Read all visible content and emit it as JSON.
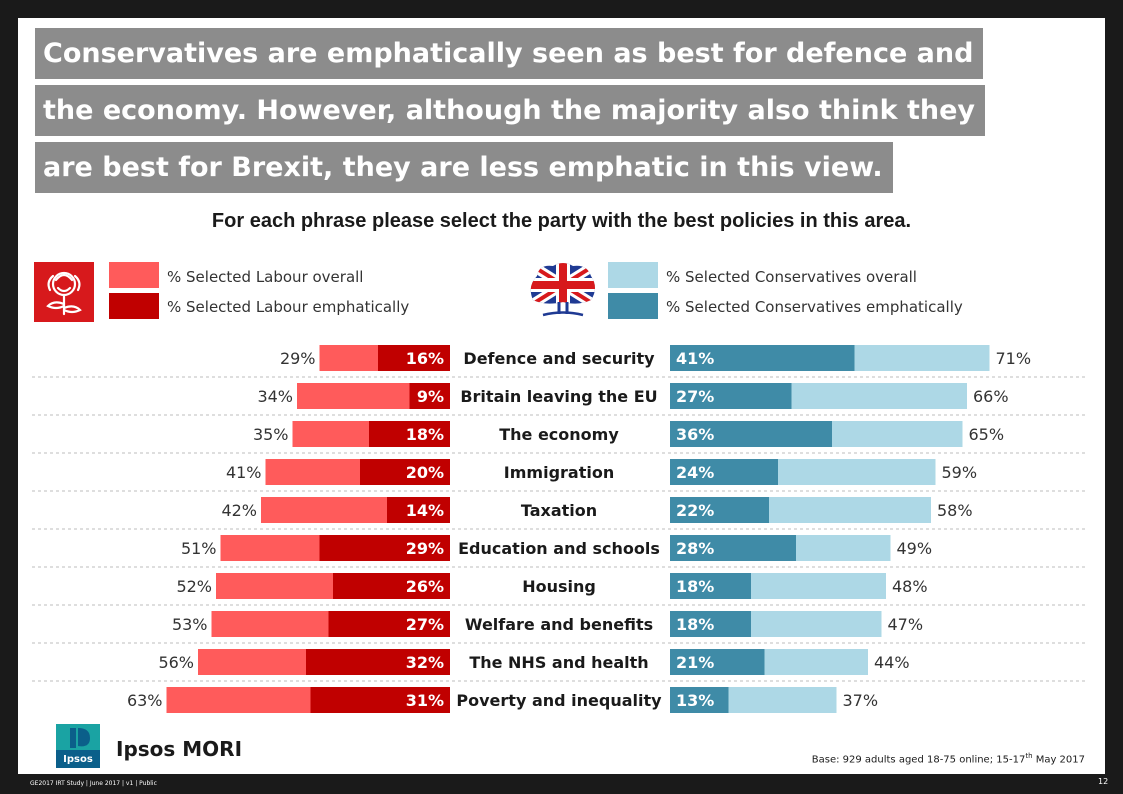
{
  "title_lines": [
    "Conservatives are emphatically seen as best for defence and",
    "the economy. However, although the majority also think they",
    "are best for Brexit, they are less emphatic in this view."
  ],
  "question": "For each phrase please select the party with the best policies in this area.",
  "legend": {
    "labour_overall": "% Selected Labour overall",
    "labour_emphatic": "% Selected Labour emphatically",
    "con_overall": "% Selected Conservatives overall",
    "con_emphatic": "% Selected Conservatives emphatically"
  },
  "colors": {
    "labour_overall": "#ff5b5b",
    "labour_emphatic": "#c00000",
    "con_overall": "#add8e6",
    "con_emphatic": "#3f8ba7",
    "title_bg": "#8c8c8c"
  },
  "icons": {
    "labour": "red-rose-icon",
    "conservative": "union-jack-tree-icon",
    "ipsos": "ipsos-logo-icon"
  },
  "chart_data": {
    "type": "bar",
    "orientation": "horizontal-diverging",
    "categories": [
      "Defence and security",
      "Britain leaving the EU",
      "The economy",
      "Immigration",
      "Taxation",
      "Education and schools",
      "Housing",
      "Welfare and benefits",
      "The NHS and health",
      "Poverty and inequality"
    ],
    "series": [
      {
        "name": "% Selected Labour overall",
        "values": [
          29,
          34,
          35,
          41,
          42,
          51,
          52,
          53,
          56,
          63
        ]
      },
      {
        "name": "% Selected Labour emphatically",
        "values": [
          16,
          9,
          18,
          20,
          14,
          29,
          26,
          27,
          32,
          31
        ]
      },
      {
        "name": "% Selected Conservatives overall",
        "values": [
          71,
          66,
          65,
          59,
          58,
          49,
          48,
          47,
          44,
          37
        ]
      },
      {
        "name": "% Selected Conservatives emphatically",
        "values": [
          41,
          27,
          36,
          24,
          22,
          28,
          18,
          18,
          21,
          13
        ]
      }
    ],
    "unit": "%"
  },
  "brand": "Ipsos MORI",
  "ipsos_logo_text": "Ipsos",
  "base_note": {
    "text": "Base: 929  adults aged 18-75  online; 15-17",
    "sup": "th",
    "tail": " May 2017"
  },
  "footer_left": "GE2017 IRT Study | June 2017 | v1 | Public",
  "page_number": "12"
}
